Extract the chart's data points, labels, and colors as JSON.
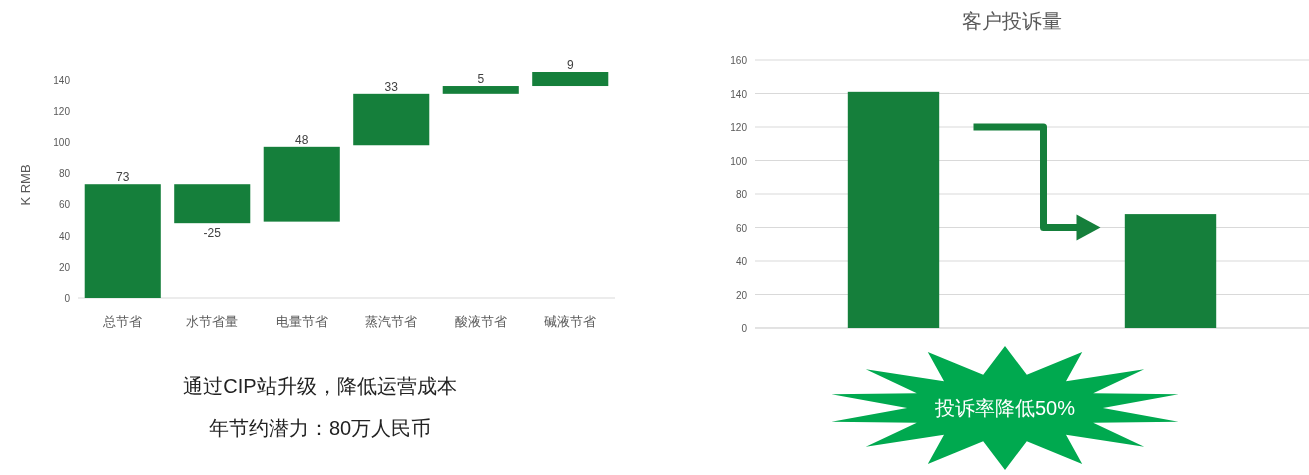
{
  "chart_data": [
    {
      "type": "bar",
      "ylabel": "K RMB",
      "categories": [
        "总节省",
        "水节省量",
        "电量节省",
        "蒸汽节省",
        "酸液节省",
        "碱液节省"
      ],
      "values": [
        73,
        -25,
        48,
        33,
        5,
        9
      ],
      "base": [
        0,
        73,
        49,
        98,
        131,
        136
      ],
      "color": "#157f3b",
      "data_labels": true,
      "ylim": [
        0,
        145
      ],
      "yticks": [
        0,
        20,
        40,
        60,
        80,
        100,
        120,
        140
      ],
      "grid": false,
      "annotations": [
        "通过CIP站升级，降低运营成本",
        "年节约潜力：80万人民币"
      ]
    },
    {
      "type": "bar",
      "title": "客户投诉量",
      "categories": [
        null,
        null
      ],
      "values": [
        141,
        68
      ],
      "color": "#157f3b",
      "ylim": [
        0,
        160
      ],
      "yticks": [
        0,
        20,
        40,
        60,
        80,
        100,
        120,
        140,
        160
      ],
      "grid": "y",
      "annotations": [
        "投诉率降低50%"
      ]
    }
  ]
}
